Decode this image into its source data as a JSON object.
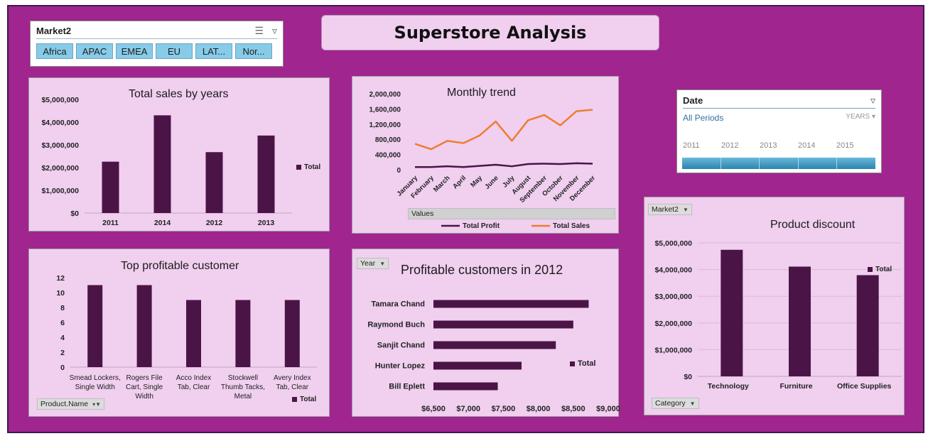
{
  "dashboard_title": "Superstore Analysis",
  "colors": {
    "bar": "#4b1446",
    "sales_line": "#ed7d31",
    "profit_line": "#4b1446",
    "background": "#a0258f",
    "panel": "#f0cfef"
  },
  "market_slicer": {
    "title": "Market2",
    "icons": [
      "multi-select-icon",
      "clear-filter-icon"
    ],
    "items": [
      "Africa",
      "APAC",
      "EMEA",
      "EU",
      "LAT...",
      "Nor..."
    ]
  },
  "date_slicer": {
    "title": "Date",
    "period": "All Periods",
    "level": "YEARS",
    "years": [
      "2011",
      "2012",
      "2013",
      "2014",
      "2015"
    ]
  },
  "sales_by_years": {
    "chart_data": {
      "type": "bar",
      "title": "Total sales by years",
      "categories": [
        "2011",
        "2014",
        "2012",
        "2013"
      ],
      "values": [
        2260000,
        4300000,
        2680000,
        3410000
      ],
      "yticks": [
        "$0",
        "$1,000,000",
        "$2,000,000",
        "$3,000,000",
        "$4,000,000",
        "$5,000,000"
      ],
      "ylim": [
        0,
        5000000
      ],
      "legend": "Total"
    }
  },
  "monthly_trend": {
    "chart_data": {
      "type": "line",
      "title": "Monthly trend",
      "categories": [
        "January",
        "February",
        "March",
        "April",
        "May",
        "June",
        "July",
        "August",
        "September",
        "October",
        "November",
        "December"
      ],
      "series": [
        {
          "name": "Total Profit",
          "values": [
            70000,
            70000,
            90000,
            70000,
            100000,
            130000,
            90000,
            150000,
            160000,
            150000,
            170000,
            160000
          ]
        },
        {
          "name": "Total Sales",
          "values": [
            680000,
            540000,
            760000,
            700000,
            900000,
            1270000,
            760000,
            1300000,
            1440000,
            1170000,
            1540000,
            1580000
          ]
        }
      ],
      "yticks": [
        "0",
        "400,000",
        "800,000",
        "1,200,000",
        "1,600,000",
        "2,000,000"
      ],
      "ylim": [
        0,
        2000000
      ],
      "field_button": "Values"
    }
  },
  "top_profitable_customer": {
    "chart_data": {
      "type": "bar",
      "title": "Top profitable customer",
      "categories": [
        "Smead Lockers, Single Width",
        "Rogers File Cart, Single Width",
        "Acco Index Tab, Clear",
        "Stockwell Thumb Tacks, Metal",
        "Avery Index Tab, Clear"
      ],
      "category_lines": [
        [
          "Smead Lockers,",
          "Single Width"
        ],
        [
          "Rogers File",
          "Cart, Single",
          "Width"
        ],
        [
          "Acco Index",
          "Tab, Clear"
        ],
        [
          "Stockwell",
          "Thumb Tacks,",
          "Metal"
        ],
        [
          "Avery Index",
          "Tab, Clear"
        ]
      ],
      "values": [
        11,
        11,
        9,
        9,
        9
      ],
      "yticks": [
        "0",
        "2",
        "4",
        "6",
        "8",
        "10",
        "12"
      ],
      "ylim": [
        0,
        12
      ],
      "legend": "Total"
    },
    "field_button": "Product.Name"
  },
  "profitable_customers_2012": {
    "chart_data": {
      "type": "bar",
      "orientation": "horizontal",
      "title": "Profitable customers in 2012",
      "categories": [
        "Tamara Chand",
        "Raymond Buch",
        "Sanjit Chand",
        "Hunter Lopez",
        "Bill Eplett"
      ],
      "values": [
        8720,
        8500,
        8250,
        7760,
        7420
      ],
      "xticks": [
        "$6,500",
        "$7,000",
        "$7,500",
        "$8,000",
        "$8,500",
        "$9,000"
      ],
      "xlim": [
        6500,
        9000
      ],
      "legend": "Total"
    },
    "field_button": "Year"
  },
  "product_discount": {
    "chart_data": {
      "type": "bar",
      "title": "Product discount",
      "categories": [
        "Technology",
        "Furniture",
        "Office Supplies"
      ],
      "values": [
        4740000,
        4110000,
        3790000
      ],
      "yticks": [
        "$0",
        "$1,000,000",
        "$2,000,000",
        "$3,000,000",
        "$4,000,000",
        "$5,000,000"
      ],
      "ylim": [
        0,
        5000000
      ],
      "legend": "Total"
    },
    "field_buttons": {
      "top": "Market2",
      "bottom": "Category"
    }
  }
}
